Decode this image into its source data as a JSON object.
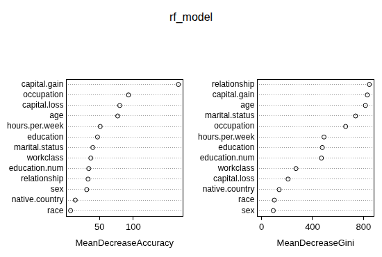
{
  "title": "rf_model",
  "chart_data": [
    {
      "type": "dot",
      "orientation": "horizontal",
      "categories": [
        "capital.gain",
        "occupation",
        "capital.loss",
        "age",
        "hours.per.week",
        "education",
        "marital.status",
        "workclass",
        "education.num",
        "relationship",
        "sex",
        "native.country",
        "race"
      ],
      "values": [
        167,
        93,
        80,
        77,
        51,
        47,
        40,
        37,
        34,
        33,
        31,
        14,
        7
      ],
      "xlabel": "MeanDecreaseAccuracy",
      "xlim": [
        0.6,
        173.4
      ],
      "xticks": [
        50,
        100
      ],
      "grid": true,
      "marker": "circle",
      "color": "#000000"
    },
    {
      "type": "dot",
      "orientation": "horizontal",
      "categories": [
        "relationship",
        "capital.gain",
        "age",
        "marital.status",
        "occupation",
        "hours.per.week",
        "education",
        "education.num",
        "workclass",
        "capital.loss",
        "native.country",
        "race",
        "sex"
      ],
      "values": [
        846,
        830,
        815,
        738,
        660,
        490,
        477,
        470,
        270,
        208,
        138,
        100,
        92
      ],
      "xlabel": "MeanDecreaseGini",
      "xlim": [
        -34,
        880
      ],
      "xticks": [
        0,
        400,
        800
      ],
      "grid": true,
      "marker": "circle",
      "color": "#000000"
    }
  ]
}
